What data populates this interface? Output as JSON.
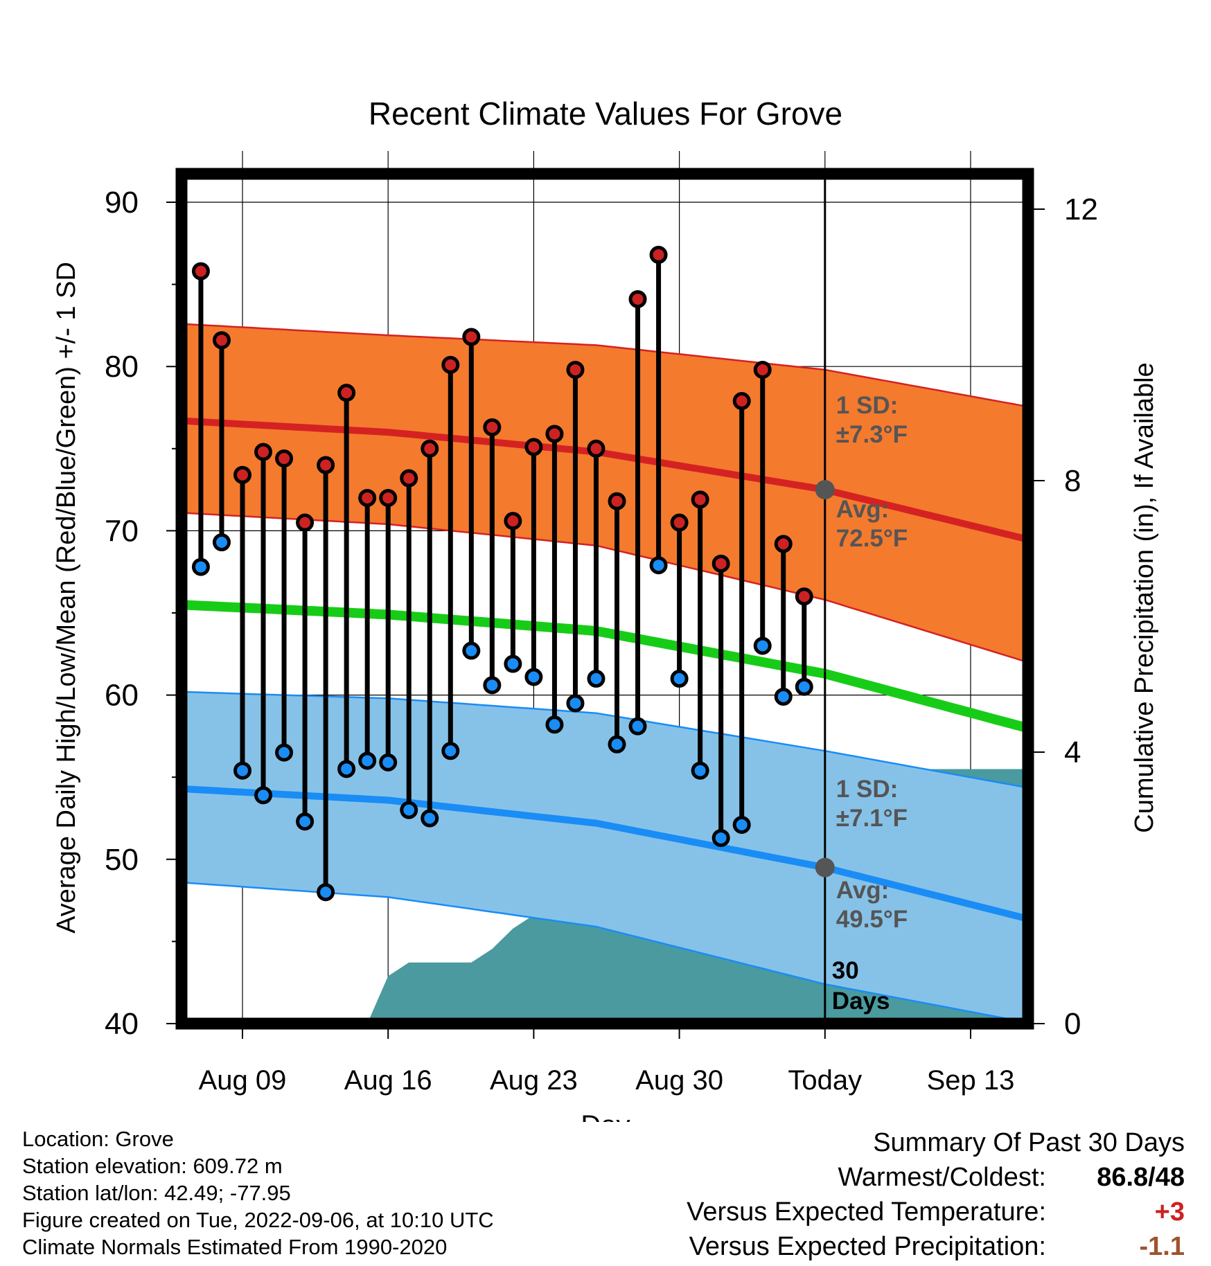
{
  "chart_data": {
    "type": "line",
    "title": "Recent Climate Values For Grove",
    "xlabel": "Day",
    "ylabel": "Average Daily High/Low/Mean (Red/Blue/Green) +/- 1 SD",
    "y2label": "Cumulative Precipitation (in), If Available",
    "ylim": [
      40,
      92
    ],
    "y2lim": [
      0,
      18.3
    ],
    "x_tick_labels": [
      "Aug 09",
      "Aug 16",
      "Aug 23",
      "Aug 30",
      "Today",
      "Sep 13"
    ],
    "x_tick_days": [
      9,
      16,
      23,
      30,
      37,
      44
    ],
    "y_ticks": [
      40,
      50,
      60,
      70,
      80,
      90
    ],
    "y2_ticks": [
      0,
      4,
      8,
      12
    ],
    "today_day": 37,
    "grid": true,
    "highs": [
      {
        "day": 7,
        "high": 85.8,
        "low": 67.8
      },
      {
        "day": 8,
        "high": 81.6,
        "low": 69.3
      },
      {
        "day": 9,
        "high": 73.4,
        "low": 55.4
      },
      {
        "day": 10,
        "high": 74.8,
        "low": 53.9
      },
      {
        "day": 11,
        "high": 74.4,
        "low": 56.5
      },
      {
        "day": 12,
        "high": 70.5,
        "low": 52.3
      },
      {
        "day": 13,
        "high": 74.0,
        "low": 48.0
      },
      {
        "day": 14,
        "high": 78.4,
        "low": 55.5
      },
      {
        "day": 15,
        "high": 72.0,
        "low": 56.0
      },
      {
        "day": 16,
        "high": 72.0,
        "low": 55.9
      },
      {
        "day": 17,
        "high": 73.2,
        "low": 53.0
      },
      {
        "day": 18,
        "high": 75.0,
        "low": 52.5
      },
      {
        "day": 19,
        "high": 80.1,
        "low": 56.6
      },
      {
        "day": 20,
        "high": 81.8,
        "low": 62.7
      },
      {
        "day": 21,
        "high": 76.3,
        "low": 60.6
      },
      {
        "day": 22,
        "high": 70.6,
        "low": 61.9
      },
      {
        "day": 23,
        "high": 75.1,
        "low": 61.1
      },
      {
        "day": 24,
        "high": 75.9,
        "low": 58.2
      },
      {
        "day": 25,
        "high": 79.8,
        "low": 59.5
      },
      {
        "day": 26,
        "high": 75.0,
        "low": 61.0
      },
      {
        "day": 27,
        "high": 71.8,
        "low": 57.0
      },
      {
        "day": 28,
        "high": 84.1,
        "low": 58.1
      },
      {
        "day": 29,
        "high": 86.8,
        "low": 67.9
      },
      {
        "day": 30,
        "high": 70.5,
        "low": 61.0
      },
      {
        "day": 31,
        "high": 71.9,
        "low": 55.4
      },
      {
        "day": 32,
        "high": 68.0,
        "low": 51.3
      },
      {
        "day": 33,
        "high": 77.9,
        "low": 52.1
      },
      {
        "day": 34,
        "high": 79.8,
        "low": 63.0
      },
      {
        "day": 35,
        "high": 69.2,
        "low": 59.9
      },
      {
        "day": 36,
        "high": 66.0,
        "low": 60.5
      }
    ],
    "normal_high": {
      "days": [
        6,
        16,
        26,
        37,
        47
      ],
      "mean": [
        76.7,
        76.0,
        74.8,
        72.5,
        69.4
      ],
      "upper": [
        82.6,
        81.9,
        81.3,
        79.8,
        77.5
      ],
      "lower": [
        71.1,
        70.4,
        69.1,
        65.8,
        61.9
      ]
    },
    "normal_mean": {
      "days": [
        6,
        16,
        26,
        37,
        47
      ],
      "mean": [
        65.5,
        64.9,
        63.9,
        61.3,
        57.9
      ]
    },
    "normal_low": {
      "days": [
        6,
        16,
        26,
        37,
        47
      ],
      "mean": [
        54.3,
        53.6,
        52.2,
        49.5,
        46.3
      ],
      "upper": [
        60.2,
        59.8,
        58.9,
        56.6,
        54.3
      ],
      "lower": [
        48.6,
        47.7,
        45.9,
        42.4,
        40.0
      ]
    },
    "precip_cumulative": [
      {
        "day": 15,
        "value": 0.0
      },
      {
        "day": 16,
        "value": 0.7
      },
      {
        "day": 17,
        "value": 0.9
      },
      {
        "day": 18,
        "value": 0.9
      },
      {
        "day": 19,
        "value": 0.9
      },
      {
        "day": 20,
        "value": 0.9
      },
      {
        "day": 21,
        "value": 1.1
      },
      {
        "day": 22,
        "value": 1.4
      },
      {
        "day": 23,
        "value": 1.6
      },
      {
        "day": 24,
        "value": 1.6
      },
      {
        "day": 25,
        "value": 1.8
      },
      {
        "day": 26,
        "value": 1.8
      },
      {
        "day": 27,
        "value": 1.8
      },
      {
        "day": 28,
        "value": 1.8
      },
      {
        "day": 29,
        "value": 2.1
      },
      {
        "day": 30,
        "value": 2.9
      },
      {
        "day": 31,
        "value": 2.9
      },
      {
        "day": 32,
        "value": 2.9
      },
      {
        "day": 33,
        "value": 2.9
      },
      {
        "day": 34,
        "value": 2.9
      },
      {
        "day": 35,
        "value": 3.2
      },
      {
        "day": 36,
        "value": 3.75
      },
      {
        "day": 47,
        "value": 3.75
      }
    ],
    "annotations": {
      "high_sd": "1 SD:\n±7.3°F",
      "high_avg": "Avg:\n72.5°F",
      "low_sd": "1 SD:\n±7.1°F",
      "low_avg": "Avg:\n49.5°F",
      "window": "30\nDays"
    },
    "colors": {
      "high_band": "#f47a2e",
      "high_line": "#d42222",
      "high_edge": "#d42222",
      "mean_line": "#17cc17",
      "low_band": "#86c2e8",
      "low_line": "#1a8cf5",
      "low_edge": "#1a8cf5",
      "precip": "#4a9aa0",
      "high_dot": "#cc2222",
      "low_dot": "#1a8cf5",
      "annotation": "#555555"
    }
  },
  "info": {
    "location": "Location: Grove",
    "elevation": "Station elevation: 609.72 m",
    "latlon": "Station lat/lon: 42.49; -77.95",
    "created": "Figure created on Tue, 2022-09-06, at 10:10 UTC",
    "normals": "Climate Normals Estimated From 1990-2020"
  },
  "summary": {
    "title": "Summary Of Past 30 Days",
    "warm_label": "Warmest/Coldest:",
    "warm_value": "86.8/48",
    "temp_label": "Versus Expected Temperature:",
    "temp_value": "+3",
    "temp_color": "#cc2222",
    "precip_label": "Versus Expected Precipitation:",
    "precip_value": "-1.1",
    "precip_color": "#a0522d"
  }
}
